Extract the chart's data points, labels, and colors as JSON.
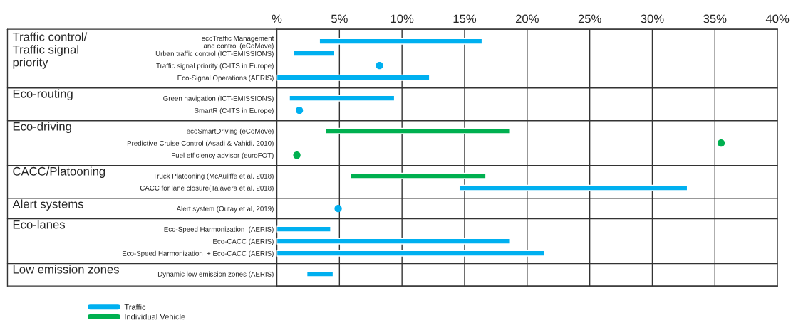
{
  "chart_data": {
    "type": "bar",
    "orientation": "horizontal",
    "categories": [
      "ecoTraffic Management\nand control (eCoMove)",
      "Urban traffic control (ICT-EMISSIONS)",
      "Traffic signal priority (C-ITS in Europe)",
      "Eco-Signal Operations (AERIS)",
      "Green navigation (ICT-EMISSIONS)",
      "SmartR (C-ITS in Europe)",
      "ecoSmartDriving (eCoMove)",
      "Predictive Cruise Control (Asadi & Vahidi, 2010)",
      "Fuel efficiency advisor (euroFOT)",
      "Truck Platooning (McAuliffe et al, 2018)",
      "CACC for lane closure(Talavera et al, 2018)",
      "Alert system (Outay et al, 2019)",
      "Eco-Speed Harmonization  (AERIS)",
      "Eco-CACC (AERIS)",
      "Eco-Speed Harmonization  + Eco-CACC (AERIS)",
      "Dynamic low emission zones (AERIS)"
    ],
    "series": [
      {
        "name": "Traffic",
        "color": "#00b0f0",
        "base": [
          3.4,
          1.3,
          null,
          0,
          1.0,
          null,
          null,
          null,
          null,
          null,
          14.6,
          null,
          0,
          0,
          0,
          2.4
        ],
        "values": [
          13.0,
          3.3,
          null,
          12.2,
          8.4,
          null,
          null,
          null,
          null,
          null,
          18.2,
          null,
          4.3,
          18.6,
          21.4,
          2.1
        ]
      },
      {
        "name": "Individual Vehicle",
        "color": "#00b050",
        "base": [
          null,
          null,
          null,
          null,
          null,
          null,
          3.9,
          null,
          null,
          5.9,
          null,
          null,
          null,
          null,
          null,
          null
        ],
        "values": [
          null,
          null,
          null,
          null,
          null,
          null,
          14.7,
          null,
          null,
          10.8,
          null,
          null,
          null,
          null,
          null,
          null
        ]
      },
      {
        "type": "scatter",
        "color": "#00b0f0",
        "values": [
          null,
          null,
          8.2,
          null,
          null,
          1.8,
          null,
          null,
          null,
          null,
          null,
          4.9,
          null,
          null,
          null,
          null
        ]
      },
      {
        "type": "scatter",
        "color": "#00b050",
        "values": [
          null,
          null,
          null,
          null,
          null,
          null,
          null,
          35.5,
          1.6,
          null,
          null,
          null,
          null,
          null,
          null,
          null
        ]
      }
    ],
    "xlim": [
      0,
      40
    ],
    "xticks": [
      {
        "value": 0,
        "label": "%"
      },
      {
        "value": 5,
        "label": "5%"
      },
      {
        "value": 10,
        "label": "10%"
      },
      {
        "value": 15,
        "label": "15%"
      },
      {
        "value": 20,
        "label": "20%"
      },
      {
        "value": 25,
        "label": "25%"
      },
      {
        "value": 30,
        "label": "30%"
      },
      {
        "value": 35,
        "label": "35%"
      },
      {
        "value": 40,
        "label": "40%"
      }
    ],
    "grid": "x",
    "legend": "bottom left",
    "marker": "circle",
    "annotations": [
      "Traffic control/\nTraffic signal\npriority",
      "Eco-routing",
      "Eco-driving",
      "CACC/Platooning",
      "Alert systems",
      "Eco-lanes",
      "Low emission zones"
    ]
  }
}
